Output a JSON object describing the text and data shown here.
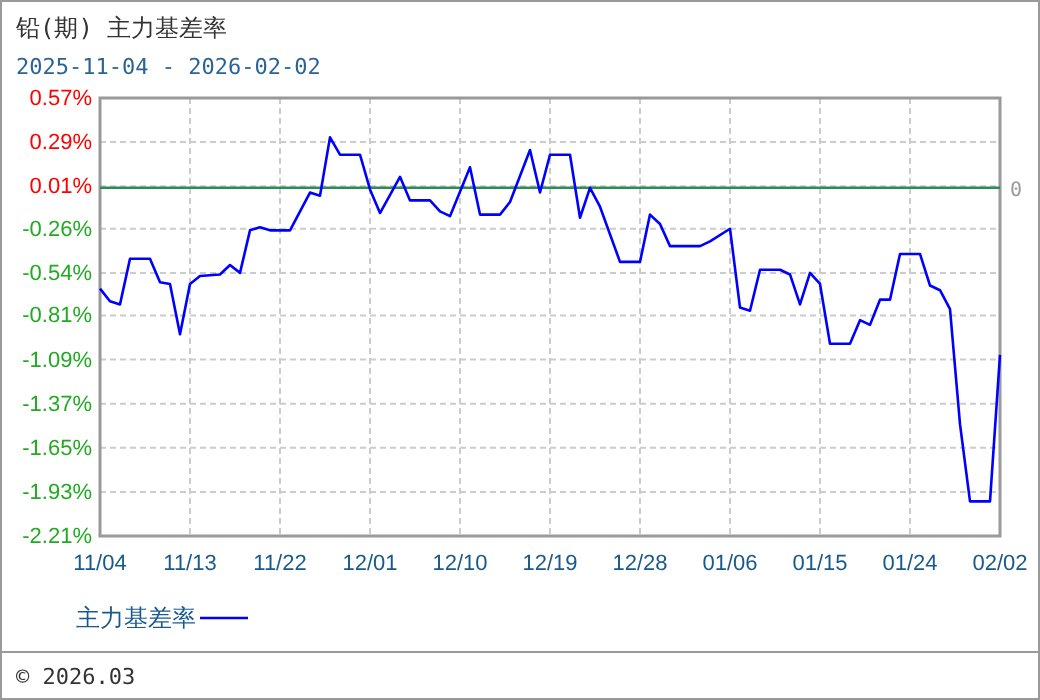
{
  "chart_data": {
    "type": "line",
    "title": "铅(期) 主力基差率",
    "subtitle": "2025-11-04 - 2026-02-02",
    "x": [
      "2025-11-04",
      "2025-11-05",
      "2025-11-06",
      "2025-11-07",
      "2025-11-09",
      "2025-11-10",
      "2025-11-11",
      "2025-11-12",
      "2025-11-13",
      "2025-11-14",
      "2025-11-16",
      "2025-11-17",
      "2025-11-18",
      "2025-11-19",
      "2025-11-20",
      "2025-11-21",
      "2025-11-23",
      "2025-11-25",
      "2025-11-26",
      "2025-11-27",
      "2025-11-28",
      "2025-11-30",
      "2025-12-01",
      "2025-12-02",
      "2025-12-04",
      "2025-12-05",
      "2025-12-07",
      "2025-12-08",
      "2025-12-09",
      "2025-12-11",
      "2025-12-12",
      "2025-12-14",
      "2025-12-15",
      "2025-12-17",
      "2025-12-18",
      "2025-12-19",
      "2025-12-21",
      "2025-12-22",
      "2025-12-23",
      "2025-12-24",
      "2025-12-26",
      "2025-12-28",
      "2025-12-29",
      "2025-12-30",
      "2025-12-31",
      "2026-01-03",
      "2026-01-04",
      "2026-01-06",
      "2026-01-07",
      "2026-01-08",
      "2026-01-09",
      "2026-01-11",
      "2026-01-12",
      "2026-01-13",
      "2026-01-14",
      "2026-01-15",
      "2026-01-16",
      "2026-01-18",
      "2026-01-19",
      "2026-01-20",
      "2026-01-21",
      "2026-01-22",
      "2026-01-23",
      "2026-01-25",
      "2026-01-26",
      "2026-01-27",
      "2026-01-28",
      "2026-01-29",
      "2026-01-30",
      "2026-02-01",
      "2026-02-02"
    ],
    "series": [
      {
        "name": "主力基差率",
        "color": "#0000ff",
        "values": [
          -0.64,
          -0.72,
          -0.74,
          -0.45,
          -0.45,
          -0.6,
          -0.61,
          -0.93,
          -0.61,
          -0.56,
          -0.55,
          -0.49,
          -0.54,
          -0.27,
          -0.25,
          -0.27,
          -0.27,
          -0.03,
          -0.05,
          0.32,
          0.21,
          0.21,
          -0.01,
          -0.16,
          0.07,
          -0.08,
          -0.08,
          -0.15,
          -0.18,
          0.13,
          -0.17,
          -0.17,
          -0.09,
          0.24,
          -0.03,
          0.21,
          0.21,
          -0.19,
          0.0,
          -0.12,
          -0.47,
          -0.47,
          -0.17,
          -0.23,
          -0.37,
          -0.37,
          -0.34,
          -0.26,
          -0.76,
          -0.78,
          -0.52,
          -0.52,
          -0.55,
          -0.74,
          -0.54,
          -0.61,
          -0.99,
          -0.99,
          -0.84,
          -0.87,
          -0.71,
          -0.71,
          -0.42,
          -0.42,
          -0.62,
          -0.65,
          -0.77,
          -1.5,
          -1.99,
          -1.99,
          -1.06
        ]
      }
    ],
    "xlim": [
      "2025-11-04",
      "2026-02-02"
    ],
    "xticks": [
      {
        "value": "2025-11-04",
        "label": "11/04"
      },
      {
        "value": "2025-11-13",
        "label": "11/13"
      },
      {
        "value": "2025-11-22",
        "label": "11/22"
      },
      {
        "value": "2025-12-01",
        "label": "12/01"
      },
      {
        "value": "2025-12-10",
        "label": "12/10"
      },
      {
        "value": "2025-12-19",
        "label": "12/19"
      },
      {
        "value": "2025-12-28",
        "label": "12/28"
      },
      {
        "value": "2026-01-06",
        "label": "01/06"
      },
      {
        "value": "2026-01-15",
        "label": "01/15"
      },
      {
        "value": "2026-01-24",
        "label": "01/24"
      },
      {
        "value": "2026-02-02",
        "label": "02/02"
      }
    ],
    "ylim": [
      -2.21,
      0.57
    ],
    "yticks": [
      {
        "value": 0.57,
        "label": "0.57%"
      },
      {
        "value": 0.29,
        "label": "0.29%"
      },
      {
        "value": 0.01,
        "label": "0.01%"
      },
      {
        "value": -0.26,
        "label": "-0.26%"
      },
      {
        "value": -0.54,
        "label": "-0.54%"
      },
      {
        "value": -0.81,
        "label": "-0.81%"
      },
      {
        "value": -1.09,
        "label": "-1.09%"
      },
      {
        "value": -1.37,
        "label": "-1.37%"
      },
      {
        "value": -1.65,
        "label": "-1.65%"
      },
      {
        "value": -1.93,
        "label": "-1.93%"
      },
      {
        "value": -2.21,
        "label": "-2.21%"
      }
    ],
    "ref_lines": [
      {
        "axis": "y",
        "value": 0,
        "label": "0",
        "color": "#2e8b57"
      }
    ],
    "grid": true,
    "legend": "bottom left",
    "marker": "none",
    "line_style": "solid",
    "annotations": [
      "© 2026.03"
    ]
  }
}
